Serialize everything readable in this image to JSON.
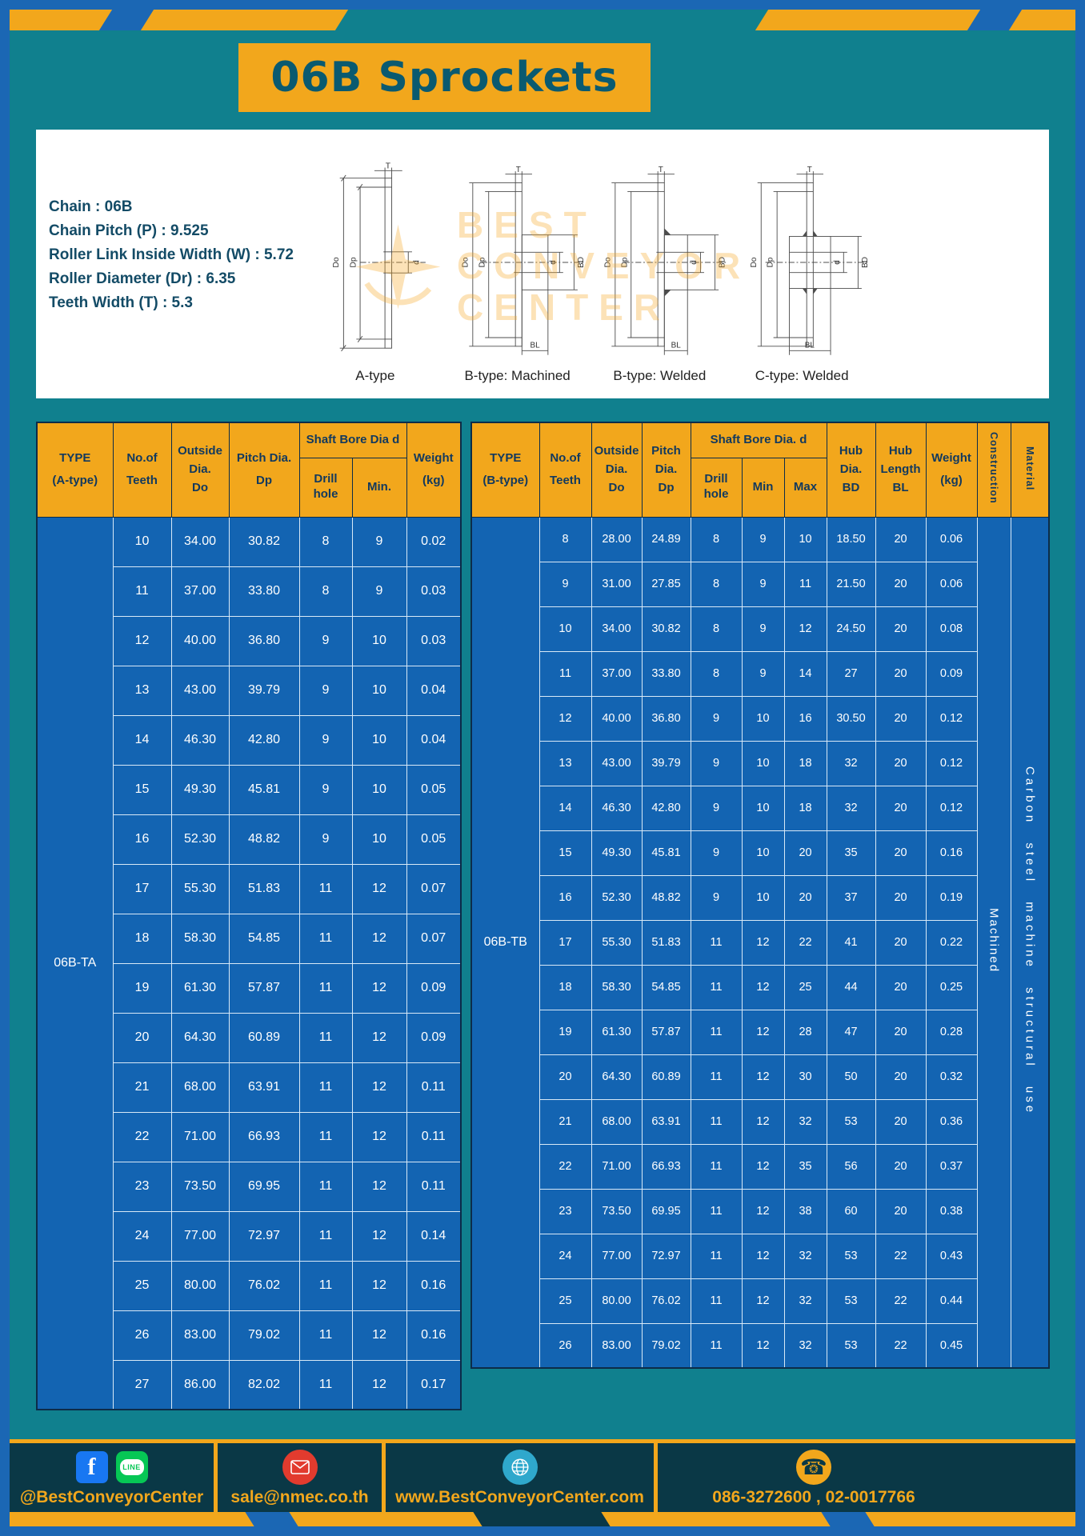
{
  "title": "06B Sprockets",
  "specs": {
    "lines": [
      "Chain : 06B",
      "Chain Pitch (P) : 9.525",
      "Roller Link Inside Width (W) : 5.72",
      "Roller Diameter (Dr) : 6.35",
      "Teeth Width (T) : 5.3"
    ],
    "dims": {
      "T": "T",
      "Do": "Do",
      "Dp": "Dp",
      "d": "d",
      "BD": "BD",
      "BL": "BL"
    },
    "diagram_labels": [
      "A-type",
      "B-type: Machined",
      "B-type: Welded",
      "C-type: Welded"
    ],
    "watermark_lines": [
      "BEST",
      "CONVEYOR",
      "CENTER"
    ]
  },
  "table_a": {
    "type_lines": [
      "TYPE",
      "(A-type)"
    ],
    "teeth_lines": [
      "No.of",
      "Teeth"
    ],
    "outside_lines": [
      "Outside",
      "Dia.",
      "Do"
    ],
    "pitch_lines": [
      "Pitch Dia.",
      "Dp"
    ],
    "bore_group": "Shaft Bore Dia d",
    "bore_subs": [
      "Drill hole",
      "Min."
    ],
    "weight_lines": [
      "Weight",
      "(kg)"
    ],
    "group_label": "06B-TA",
    "rows": [
      [
        "10",
        "34.00",
        "30.82",
        "8",
        "9",
        "0.02"
      ],
      [
        "11",
        "37.00",
        "33.80",
        "8",
        "9",
        "0.03"
      ],
      [
        "12",
        "40.00",
        "36.80",
        "9",
        "10",
        "0.03"
      ],
      [
        "13",
        "43.00",
        "39.79",
        "9",
        "10",
        "0.04"
      ],
      [
        "14",
        "46.30",
        "42.80",
        "9",
        "10",
        "0.04"
      ],
      [
        "15",
        "49.30",
        "45.81",
        "9",
        "10",
        "0.05"
      ],
      [
        "16",
        "52.30",
        "48.82",
        "9",
        "10",
        "0.05"
      ],
      [
        "17",
        "55.30",
        "51.83",
        "11",
        "12",
        "0.07"
      ],
      [
        "18",
        "58.30",
        "54.85",
        "11",
        "12",
        "0.07"
      ],
      [
        "19",
        "61.30",
        "57.87",
        "11",
        "12",
        "0.09"
      ],
      [
        "20",
        "64.30",
        "60.89",
        "11",
        "12",
        "0.09"
      ],
      [
        "21",
        "68.00",
        "63.91",
        "11",
        "12",
        "0.11"
      ],
      [
        "22",
        "71.00",
        "66.93",
        "11",
        "12",
        "0.11"
      ],
      [
        "23",
        "73.50",
        "69.95",
        "11",
        "12",
        "0.11"
      ],
      [
        "24",
        "77.00",
        "72.97",
        "11",
        "12",
        "0.14"
      ],
      [
        "25",
        "80.00",
        "76.02",
        "11",
        "12",
        "0.16"
      ],
      [
        "26",
        "83.00",
        "79.02",
        "11",
        "12",
        "0.16"
      ],
      [
        "27",
        "86.00",
        "82.02",
        "11",
        "12",
        "0.17"
      ]
    ]
  },
  "table_b": {
    "type_lines": [
      "TYPE",
      "(B-type)"
    ],
    "teeth_lines": [
      "No.of",
      "Teeth"
    ],
    "outside_lines": [
      "Outside",
      "Dia.",
      "Do"
    ],
    "pitch_lines": [
      "Pitch",
      "Dia.",
      "Dp"
    ],
    "bore_group": "Shaft Bore Dia. d",
    "bore_subs": [
      "Drill hole",
      "Min",
      "Max"
    ],
    "hub_dia_lines": [
      "Hub",
      "Dia.",
      "BD"
    ],
    "hub_len_lines": [
      "Hub",
      "Length",
      "BL"
    ],
    "weight_lines": [
      "Weight",
      "(kg)"
    ],
    "construction_label": "Construction",
    "material_label": "Material",
    "group_label": "06B-TB",
    "construction_value": "Machined",
    "material_value": "Carbon steel machine structural use",
    "rows": [
      [
        "8",
        "28.00",
        "24.89",
        "8",
        "9",
        "10",
        "18.50",
        "20",
        "0.06"
      ],
      [
        "9",
        "31.00",
        "27.85",
        "8",
        "9",
        "11",
        "21.50",
        "20",
        "0.06"
      ],
      [
        "10",
        "34.00",
        "30.82",
        "8",
        "9",
        "12",
        "24.50",
        "20",
        "0.08"
      ],
      [
        "11",
        "37.00",
        "33.80",
        "8",
        "9",
        "14",
        "27",
        "20",
        "0.09"
      ],
      [
        "12",
        "40.00",
        "36.80",
        "9",
        "10",
        "16",
        "30.50",
        "20",
        "0.12"
      ],
      [
        "13",
        "43.00",
        "39.79",
        "9",
        "10",
        "18",
        "32",
        "20",
        "0.12"
      ],
      [
        "14",
        "46.30",
        "42.80",
        "9",
        "10",
        "18",
        "32",
        "20",
        "0.12"
      ],
      [
        "15",
        "49.30",
        "45.81",
        "9",
        "10",
        "20",
        "35",
        "20",
        "0.16"
      ],
      [
        "16",
        "52.30",
        "48.82",
        "9",
        "10",
        "20",
        "37",
        "20",
        "0.19"
      ],
      [
        "17",
        "55.30",
        "51.83",
        "11",
        "12",
        "22",
        "41",
        "20",
        "0.22"
      ],
      [
        "18",
        "58.30",
        "54.85",
        "11",
        "12",
        "25",
        "44",
        "20",
        "0.25"
      ],
      [
        "19",
        "61.30",
        "57.87",
        "11",
        "12",
        "28",
        "47",
        "20",
        "0.28"
      ],
      [
        "20",
        "64.30",
        "60.89",
        "11",
        "12",
        "30",
        "50",
        "20",
        "0.32"
      ],
      [
        "21",
        "68.00",
        "63.91",
        "11",
        "12",
        "32",
        "53",
        "20",
        "0.36"
      ],
      [
        "22",
        "71.00",
        "66.93",
        "11",
        "12",
        "35",
        "56",
        "20",
        "0.37"
      ],
      [
        "23",
        "73.50",
        "69.95",
        "11",
        "12",
        "38",
        "60",
        "20",
        "0.38"
      ],
      [
        "24",
        "77.00",
        "72.97",
        "11",
        "12",
        "32",
        "53",
        "22",
        "0.43"
      ],
      [
        "25",
        "80.00",
        "76.02",
        "11",
        "12",
        "32",
        "53",
        "22",
        "0.44"
      ],
      [
        "26",
        "83.00",
        "79.02",
        "11",
        "12",
        "32",
        "53",
        "22",
        "0.45"
      ]
    ]
  },
  "footer": {
    "social_text": "@BestConveyorCenter",
    "email_text": "sale@nmec.co.th",
    "website_text": "www.BestConveyorCenter.com",
    "phone_text": "086-3272600 , 02-0017766",
    "line_icon_text": "LINE",
    "facebook_letter": "f",
    "phone_glyph": "☎"
  },
  "colors": {
    "teal_bg": "#10808E",
    "frame_blue": "#1B67B4",
    "accent_yellow": "#F2A71C",
    "table_blue": "#1364B2",
    "header_text": "#12395E",
    "footer_bg": "#0A3846"
  }
}
